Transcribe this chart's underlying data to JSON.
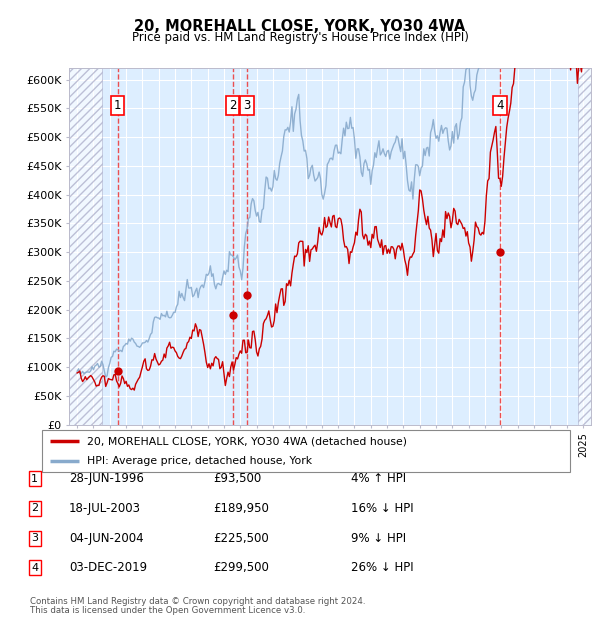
{
  "title": "20, MOREHALL CLOSE, YORK, YO30 4WA",
  "subtitle": "Price paid vs. HM Land Registry's House Price Index (HPI)",
  "footer1": "Contains HM Land Registry data © Crown copyright and database right 2024.",
  "footer2": "This data is licensed under the Open Government Licence v3.0.",
  "legend_label_red": "20, MOREHALL CLOSE, YORK, YO30 4WA (detached house)",
  "legend_label_blue": "HPI: Average price, detached house, York",
  "transactions": [
    {
      "id": 1,
      "date": "28-JUN-1996",
      "price": 93500,
      "pct": "4%",
      "dir": "↑",
      "year": 1996.49
    },
    {
      "id": 2,
      "date": "18-JUL-2003",
      "price": 189950,
      "pct": "16%",
      "dir": "↓",
      "year": 2003.54
    },
    {
      "id": 3,
      "date": "04-JUN-2004",
      "price": 225500,
      "pct": "9%",
      "dir": "↓",
      "year": 2004.42
    },
    {
      "id": 4,
      "date": "03-DEC-2019",
      "price": 299500,
      "pct": "26%",
      "dir": "↓",
      "year": 2019.92
    }
  ],
  "hpi_line_color": "#88aacc",
  "price_line_color": "#cc0000",
  "dashed_line_color": "#ee3333",
  "background_color": "#ddeeff",
  "ylim": [
    0,
    620000
  ],
  "yticks": [
    0,
    50000,
    100000,
    150000,
    200000,
    250000,
    300000,
    350000,
    400000,
    450000,
    500000,
    550000,
    600000
  ],
  "xlim_start": 1993.5,
  "xlim_end": 2025.5,
  "hatch_end": 1995.5,
  "hatch_start_right": 2024.7
}
